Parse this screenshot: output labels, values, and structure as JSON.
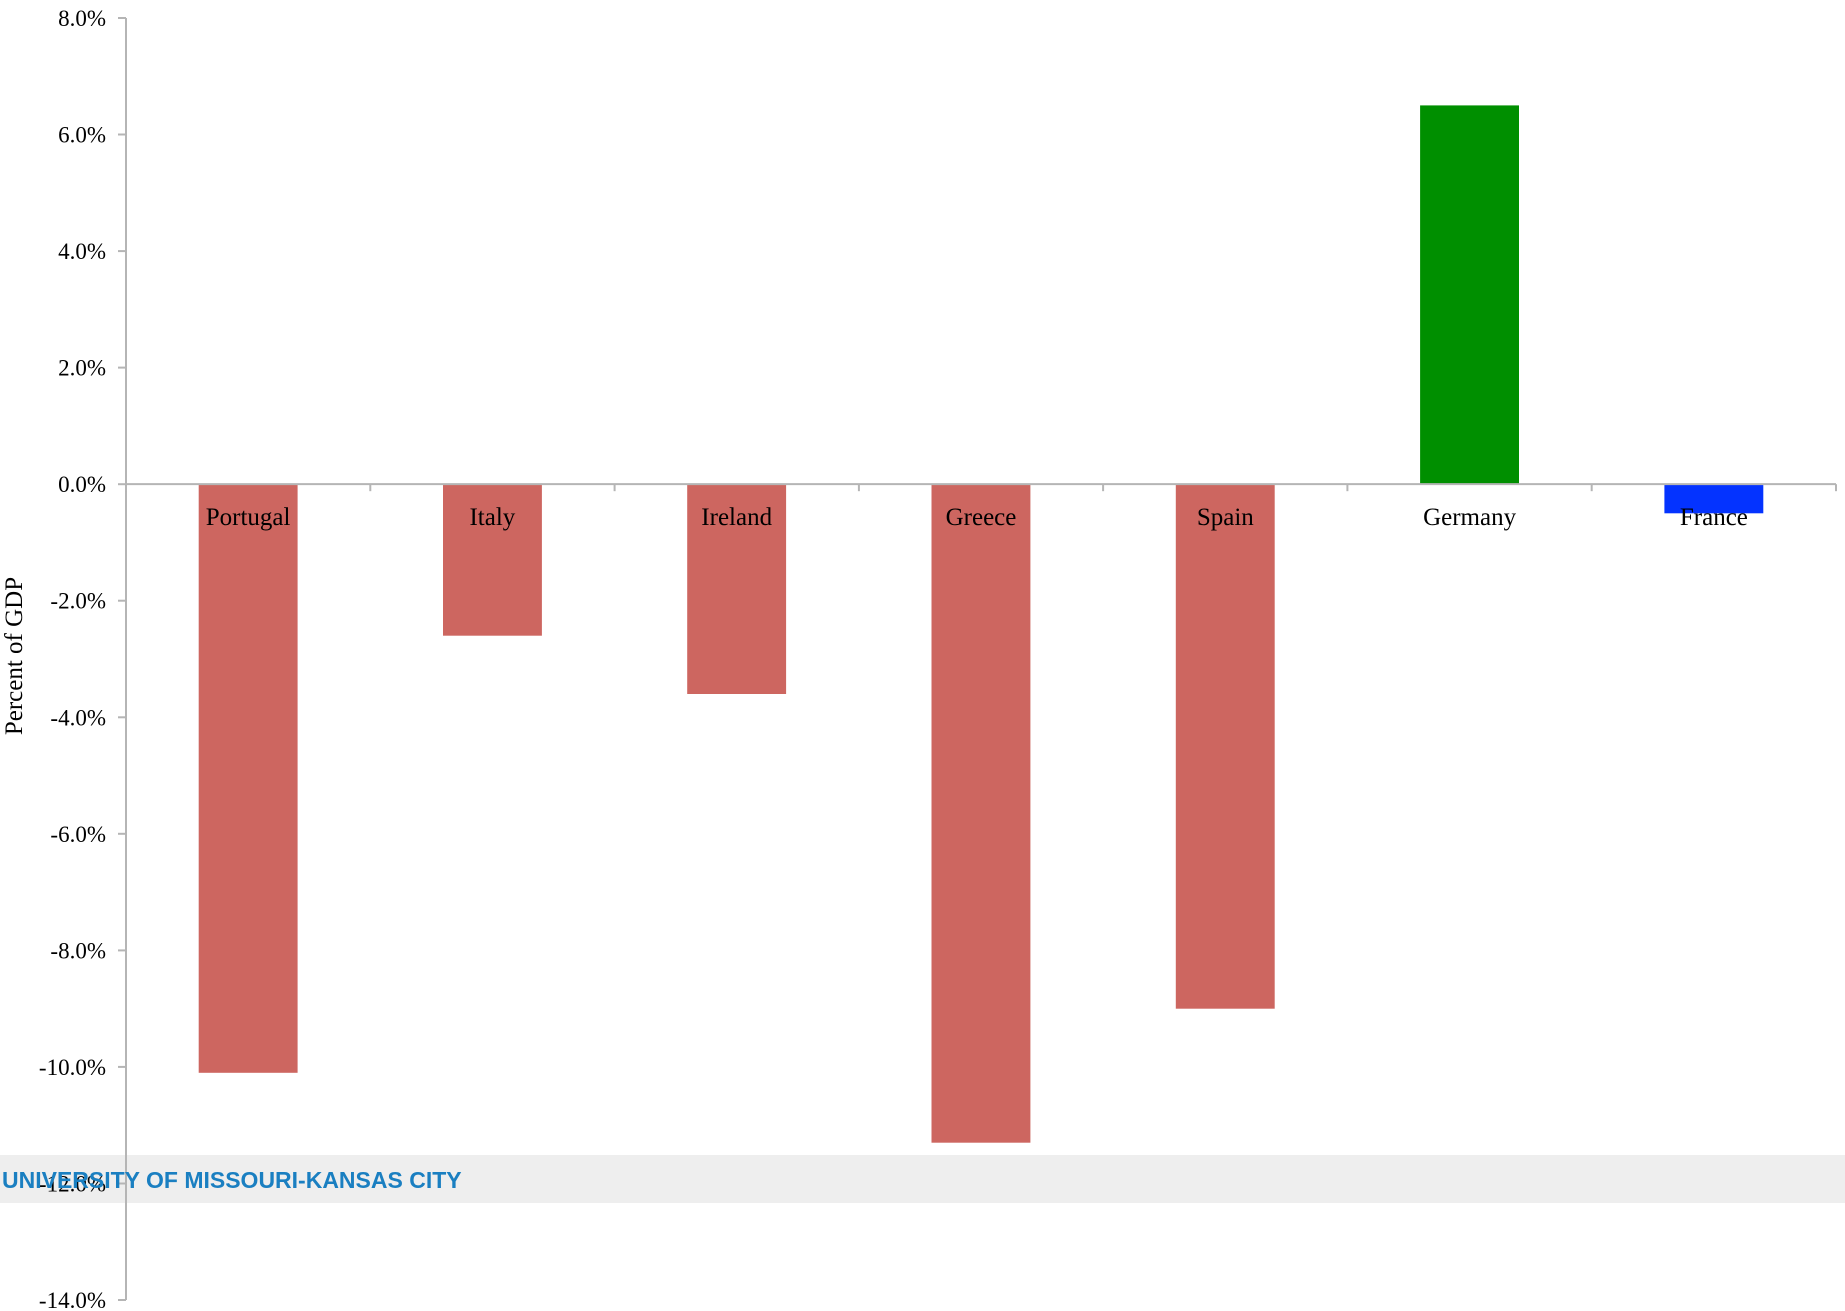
{
  "chart_data": {
    "type": "bar",
    "categories": [
      "Portugal",
      "Italy",
      "Ireland",
      "Greece",
      "Spain",
      "Germany",
      "France"
    ],
    "values": [
      -10.1,
      -2.6,
      -3.6,
      -11.3,
      -9.0,
      6.5,
      -0.5
    ],
    "bar_colors": [
      "#cd6660",
      "#cd6660",
      "#cd6660",
      "#cd6660",
      "#cd6660",
      "#008f00",
      "#0433ff"
    ],
    "ylabel": "Percent of GDP",
    "ylim": [
      -14,
      8
    ],
    "yticks": [
      8,
      6,
      4,
      2,
      0,
      -2,
      -4,
      -6,
      -8,
      -10,
      -12,
      -14
    ],
    "ytick_labels": [
      "8.0%",
      "6.0%",
      "4.0%",
      "2.0%",
      "0.0%",
      "-2.0%",
      "-4.0%",
      "-6.0%",
      "-8.0%",
      "-10.0%",
      "-12.0%",
      "-14.0%"
    ],
    "grid": false,
    "legend": "none"
  },
  "banner": {
    "text": "UNIVERSITY OF MISSOURI-KANSAS CITY",
    "band_color": "#eeeeee",
    "text_color": "#1a7fc1"
  }
}
